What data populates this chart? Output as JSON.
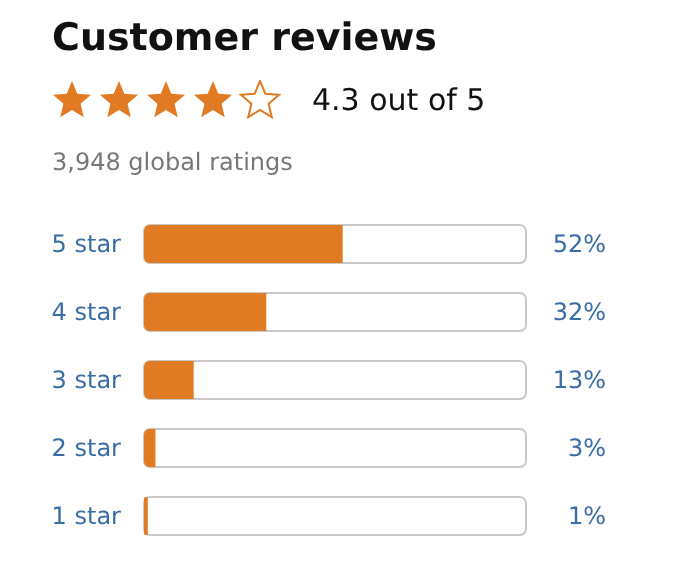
{
  "chart_data": {
    "type": "bar",
    "orientation": "horizontal",
    "title": "Customer reviews",
    "subtitle": "4.3 out of 5",
    "annotations": [
      "3,948 global ratings"
    ],
    "categories": [
      "5 star",
      "4 star",
      "3 star",
      "2 star",
      "1 star"
    ],
    "values": [
      52,
      32,
      13,
      3,
      1
    ],
    "value_labels": [
      "52%",
      "32%",
      "13%",
      "3%",
      "1%"
    ],
    "color": "#e07b24",
    "xlim": [
      0,
      100
    ],
    "tick_labels": "y"
  }
}
